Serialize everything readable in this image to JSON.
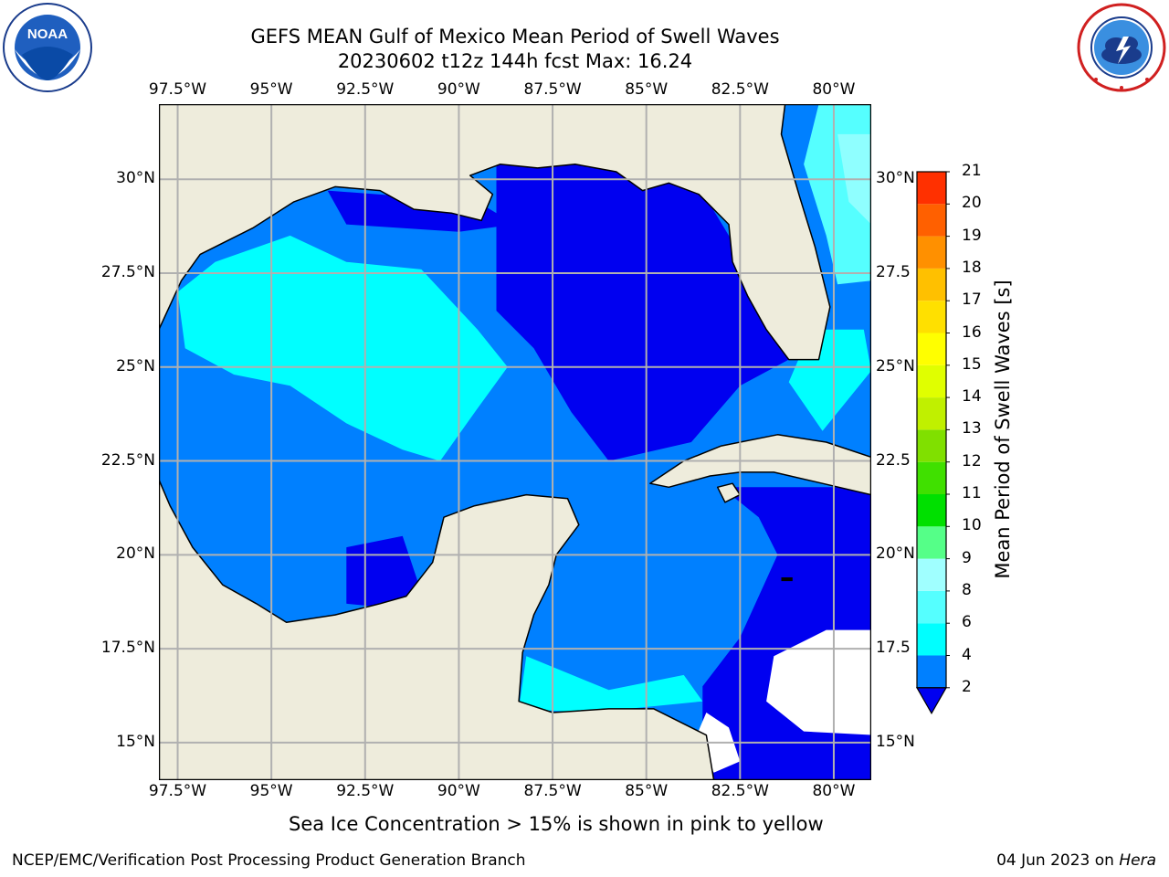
{
  "header": {
    "title_line1": "GEFS MEAN Gulf of Mexico Mean Period of Swell Waves",
    "title_line2": "20230602 t12z 144h fcst   Max: 16.24"
  },
  "logos": {
    "left": {
      "name": "noaa-logo",
      "text": "NOAA",
      "ring_text": "NATIONAL OCEANIC AND ATMOSPHERIC ADMINISTRATION · U.S. DEPARTMENT OF COMMERCE"
    },
    "right": {
      "name": "nws-logo",
      "ring_text": "NATIONAL WEATHER SERVICE"
    }
  },
  "map": {
    "lon_ticks": [
      "97.5°W",
      "95°W",
      "92.5°W",
      "90°W",
      "87.5°W",
      "85°W",
      "82.5°W",
      "80°W"
    ],
    "lat_ticks_left": [
      "30°N",
      "27.5°N",
      "25°N",
      "22.5°N",
      "20°N",
      "17.5°N",
      "15°N"
    ],
    "lat_ticks_right": [
      "30°N",
      "27.5",
      "25°N",
      "22.5",
      "20°N",
      "17.5",
      "15°N"
    ],
    "lon_range": [
      -98,
      -79
    ],
    "lat_range": [
      14,
      32
    ],
    "colors": {
      "land": "#eeecdc",
      "ocean_2_4": "#0080ff",
      "ocean_lt2": "#0000f0",
      "ocean_4_6": "#00ffff",
      "ocean_6_8": "#55ffff",
      "ocean_8_9": "#8fffff",
      "ocean_15_16": "#ffff00",
      "grid": "#b0b0b0"
    }
  },
  "colorbar": {
    "title": "Mean Period of Swell Waves [s]",
    "tick_labels": [
      "2",
      "4",
      "6",
      "8",
      "9",
      "10",
      "11",
      "12",
      "13",
      "14",
      "15",
      "16",
      "17",
      "18",
      "19",
      "20",
      "21"
    ],
    "colors": [
      "#0080ff",
      "#00ffff",
      "#55ffff",
      "#a0ffff",
      "#55ff88",
      "#00e000",
      "#40e000",
      "#80e000",
      "#c0f000",
      "#e0ff00",
      "#ffff00",
      "#ffe000",
      "#ffc000",
      "#ff9000",
      "#ff6000",
      "#ff3000"
    ],
    "extend_color": "#0000f0"
  },
  "footer": {
    "note": "Sea Ice Concentration > 15% is shown in pink to yellow",
    "credit": "NCEP/EMC/Verification Post Processing Product Generation Branch",
    "date": "04 Jun 2023 on ",
    "machine": "Hera"
  }
}
